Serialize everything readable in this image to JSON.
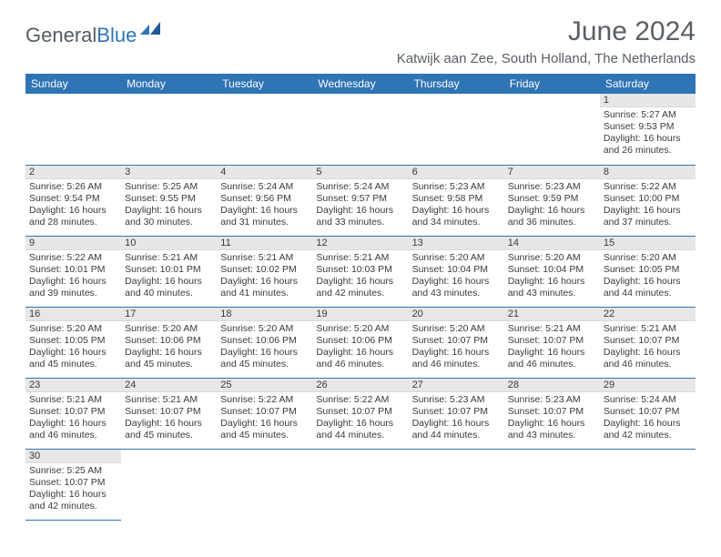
{
  "brand": {
    "part1": "General",
    "part2": "Blue"
  },
  "title": "June 2024",
  "location": "Katwijk aan Zee, South Holland, The Netherlands",
  "colors": {
    "header_bg": "#2f74b5",
    "header_text": "#ffffff",
    "daynum_bg": "#e7e7e7",
    "cell_border": "#2f74b5",
    "text": "#3a3a3a",
    "title_text": "#5a5f64"
  },
  "day_headers": [
    "Sunday",
    "Monday",
    "Tuesday",
    "Wednesday",
    "Thursday",
    "Friday",
    "Saturday"
  ],
  "weeks": [
    [
      null,
      null,
      null,
      null,
      null,
      null,
      {
        "n": "1",
        "sunrise": "5:27 AM",
        "sunset": "9:53 PM",
        "daylight": "16 hours and 26 minutes."
      }
    ],
    [
      {
        "n": "2",
        "sunrise": "5:26 AM",
        "sunset": "9:54 PM",
        "daylight": "16 hours and 28 minutes."
      },
      {
        "n": "3",
        "sunrise": "5:25 AM",
        "sunset": "9:55 PM",
        "daylight": "16 hours and 30 minutes."
      },
      {
        "n": "4",
        "sunrise": "5:24 AM",
        "sunset": "9:56 PM",
        "daylight": "16 hours and 31 minutes."
      },
      {
        "n": "5",
        "sunrise": "5:24 AM",
        "sunset": "9:57 PM",
        "daylight": "16 hours and 33 minutes."
      },
      {
        "n": "6",
        "sunrise": "5:23 AM",
        "sunset": "9:58 PM",
        "daylight": "16 hours and 34 minutes."
      },
      {
        "n": "7",
        "sunrise": "5:23 AM",
        "sunset": "9:59 PM",
        "daylight": "16 hours and 36 minutes."
      },
      {
        "n": "8",
        "sunrise": "5:22 AM",
        "sunset": "10:00 PM",
        "daylight": "16 hours and 37 minutes."
      }
    ],
    [
      {
        "n": "9",
        "sunrise": "5:22 AM",
        "sunset": "10:01 PM",
        "daylight": "16 hours and 39 minutes."
      },
      {
        "n": "10",
        "sunrise": "5:21 AM",
        "sunset": "10:01 PM",
        "daylight": "16 hours and 40 minutes."
      },
      {
        "n": "11",
        "sunrise": "5:21 AM",
        "sunset": "10:02 PM",
        "daylight": "16 hours and 41 minutes."
      },
      {
        "n": "12",
        "sunrise": "5:21 AM",
        "sunset": "10:03 PM",
        "daylight": "16 hours and 42 minutes."
      },
      {
        "n": "13",
        "sunrise": "5:20 AM",
        "sunset": "10:04 PM",
        "daylight": "16 hours and 43 minutes."
      },
      {
        "n": "14",
        "sunrise": "5:20 AM",
        "sunset": "10:04 PM",
        "daylight": "16 hours and 43 minutes."
      },
      {
        "n": "15",
        "sunrise": "5:20 AM",
        "sunset": "10:05 PM",
        "daylight": "16 hours and 44 minutes."
      }
    ],
    [
      {
        "n": "16",
        "sunrise": "5:20 AM",
        "sunset": "10:05 PM",
        "daylight": "16 hours and 45 minutes."
      },
      {
        "n": "17",
        "sunrise": "5:20 AM",
        "sunset": "10:06 PM",
        "daylight": "16 hours and 45 minutes."
      },
      {
        "n": "18",
        "sunrise": "5:20 AM",
        "sunset": "10:06 PM",
        "daylight": "16 hours and 45 minutes."
      },
      {
        "n": "19",
        "sunrise": "5:20 AM",
        "sunset": "10:06 PM",
        "daylight": "16 hours and 46 minutes."
      },
      {
        "n": "20",
        "sunrise": "5:20 AM",
        "sunset": "10:07 PM",
        "daylight": "16 hours and 46 minutes."
      },
      {
        "n": "21",
        "sunrise": "5:21 AM",
        "sunset": "10:07 PM",
        "daylight": "16 hours and 46 minutes."
      },
      {
        "n": "22",
        "sunrise": "5:21 AM",
        "sunset": "10:07 PM",
        "daylight": "16 hours and 46 minutes."
      }
    ],
    [
      {
        "n": "23",
        "sunrise": "5:21 AM",
        "sunset": "10:07 PM",
        "daylight": "16 hours and 46 minutes."
      },
      {
        "n": "24",
        "sunrise": "5:21 AM",
        "sunset": "10:07 PM",
        "daylight": "16 hours and 45 minutes."
      },
      {
        "n": "25",
        "sunrise": "5:22 AM",
        "sunset": "10:07 PM",
        "daylight": "16 hours and 45 minutes."
      },
      {
        "n": "26",
        "sunrise": "5:22 AM",
        "sunset": "10:07 PM",
        "daylight": "16 hours and 44 minutes."
      },
      {
        "n": "27",
        "sunrise": "5:23 AM",
        "sunset": "10:07 PM",
        "daylight": "16 hours and 44 minutes."
      },
      {
        "n": "28",
        "sunrise": "5:23 AM",
        "sunset": "10:07 PM",
        "daylight": "16 hours and 43 minutes."
      },
      {
        "n": "29",
        "sunrise": "5:24 AM",
        "sunset": "10:07 PM",
        "daylight": "16 hours and 42 minutes."
      }
    ],
    [
      {
        "n": "30",
        "sunrise": "5:25 AM",
        "sunset": "10:07 PM",
        "daylight": "16 hours and 42 minutes."
      },
      null,
      null,
      null,
      null,
      null,
      null
    ]
  ],
  "labels": {
    "sunrise": "Sunrise:",
    "sunset": "Sunset:",
    "daylight": "Daylight:"
  }
}
